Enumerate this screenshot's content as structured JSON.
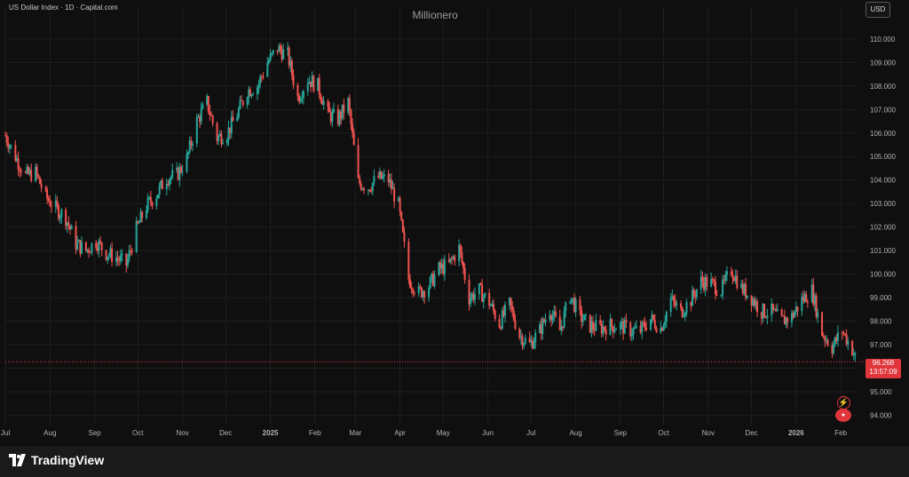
{
  "header": {
    "symbol_line": "US Dollar Index · 1D · Capital.com",
    "watermark": "Millionero",
    "currency_button": "USD"
  },
  "price_badge": {
    "price": "96.268",
    "countdown": "13:57:09"
  },
  "footer": {
    "brand": "TradingView",
    "brand_icon": "tradingview-logo-icon"
  },
  "icons": {
    "flash": "flash-icon",
    "avatar": "user-avatar-icon"
  },
  "colors": {
    "up": "#26a69a",
    "down": "#ef5350",
    "background": "#0f0f0f",
    "grid": "#1f1f1f",
    "axis_text": "#b2b2b2",
    "last_price_line": "#e0363c"
  },
  "chart_data": {
    "type": "candlestick",
    "title": "",
    "xlabel": "",
    "ylabel": "",
    "x_tick_labels": [
      "Jul",
      "Aug",
      "Sep",
      "Oct",
      "Nov",
      "Dec",
      "2025",
      "Feb",
      "Mar",
      "Apr",
      "May",
      "Jun",
      "Jul",
      "Aug",
      "Sep",
      "Oct",
      "Nov",
      "Dec",
      "2026",
      "Feb"
    ],
    "y_tick_labels": [
      "110.000",
      "109.000",
      "108.000",
      "107.000",
      "106.000",
      "105.000",
      "104.000",
      "103.000",
      "102.000",
      "101.000",
      "100.000",
      "99.000",
      "98.000",
      "97.000",
      "96.000",
      "95.000",
      "94.000"
    ],
    "ylim": [
      93.6,
      110.6
    ],
    "x_range": [
      "2024-07-01",
      "2026-02-12"
    ],
    "last_price": 96.268,
    "grid": true,
    "series": [
      {
        "points": [
          [
            "2024-07-01",
            105.9
          ],
          [
            "2024-07-08",
            105.0
          ],
          [
            "2024-07-15",
            104.2
          ],
          [
            "2024-07-22",
            104.3
          ],
          [
            "2024-07-29",
            103.3
          ],
          [
            "2024-08-05",
            102.8
          ],
          [
            "2024-08-12",
            102.4
          ],
          [
            "2024-08-19",
            101.3
          ],
          [
            "2024-08-26",
            101.0
          ],
          [
            "2024-09-02",
            101.4
          ],
          [
            "2024-09-09",
            100.9
          ],
          [
            "2024-09-16",
            100.7
          ],
          [
            "2024-09-23",
            100.4
          ],
          [
            "2024-09-30",
            101.9
          ],
          [
            "2024-10-07",
            102.9
          ],
          [
            "2024-10-14",
            103.4
          ],
          [
            "2024-10-21",
            104.1
          ],
          [
            "2024-10-28",
            104.2
          ],
          [
            "2024-11-04",
            104.9
          ],
          [
            "2024-11-11",
            106.5
          ],
          [
            "2024-11-18",
            107.3
          ],
          [
            "2024-11-25",
            105.8
          ],
          [
            "2024-12-02",
            106.0
          ],
          [
            "2024-12-09",
            106.8
          ],
          [
            "2024-12-16",
            107.8
          ],
          [
            "2024-12-23",
            108.0
          ],
          [
            "2024-12-30",
            109.0
          ],
          [
            "2025-01-06",
            109.6
          ],
          [
            "2025-01-13",
            109.3
          ],
          [
            "2025-01-20",
            107.5
          ],
          [
            "2025-01-27",
            108.3
          ],
          [
            "2025-02-03",
            108.0
          ],
          [
            "2025-02-10",
            106.8
          ],
          [
            "2025-02-17",
            106.6
          ],
          [
            "2025-02-24",
            107.3
          ],
          [
            "2025-03-03",
            103.9
          ],
          [
            "2025-03-10",
            103.7
          ],
          [
            "2025-03-17",
            104.1
          ],
          [
            "2025-03-24",
            104.0
          ],
          [
            "2025-03-31",
            102.9
          ],
          [
            "2025-04-07",
            99.8
          ],
          [
            "2025-04-14",
            99.2
          ],
          [
            "2025-04-21",
            99.5
          ],
          [
            "2025-04-28",
            100.2
          ],
          [
            "2025-05-05",
            100.4
          ],
          [
            "2025-05-12",
            101.1
          ],
          [
            "2025-05-19",
            99.0
          ],
          [
            "2025-05-26",
            99.3
          ],
          [
            "2025-06-02",
            98.8
          ],
          [
            "2025-06-09",
            97.9
          ],
          [
            "2025-06-16",
            98.7
          ],
          [
            "2025-06-23",
            97.4
          ],
          [
            "2025-06-30",
            97.0
          ],
          [
            "2025-07-07",
            97.6
          ],
          [
            "2025-07-14",
            98.5
          ],
          [
            "2025-07-21",
            97.6
          ],
          [
            "2025-07-28",
            99.1
          ],
          [
            "2025-08-04",
            98.2
          ],
          [
            "2025-08-11",
            97.8
          ],
          [
            "2025-08-18",
            97.7
          ],
          [
            "2025-08-25",
            97.8
          ],
          [
            "2025-09-01",
            97.8
          ],
          [
            "2025-09-08",
            97.6
          ],
          [
            "2025-09-15",
            97.6
          ],
          [
            "2025-09-22",
            98.1
          ],
          [
            "2025-09-29",
            97.7
          ],
          [
            "2025-10-06",
            98.9
          ],
          [
            "2025-10-13",
            98.4
          ],
          [
            "2025-10-20",
            98.9
          ],
          [
            "2025-10-27",
            99.7
          ],
          [
            "2025-11-03",
            99.6
          ],
          [
            "2025-11-10",
            99.3
          ],
          [
            "2025-11-17",
            100.2
          ],
          [
            "2025-11-24",
            99.4
          ],
          [
            "2025-12-01",
            99.0
          ],
          [
            "2025-12-08",
            98.4
          ],
          [
            "2025-12-15",
            98.4
          ],
          [
            "2025-12-22",
            98.0
          ],
          [
            "2025-12-29",
            98.2
          ],
          [
            "2026-01-05",
            98.9
          ],
          [
            "2026-01-12",
            99.3
          ],
          [
            "2026-01-19",
            97.5
          ],
          [
            "2026-01-26",
            96.9
          ],
          [
            "2026-02-02",
            97.6
          ],
          [
            "2026-02-09",
            96.8
          ],
          [
            "2026-02-12",
            96.268
          ]
        ]
      }
    ]
  }
}
